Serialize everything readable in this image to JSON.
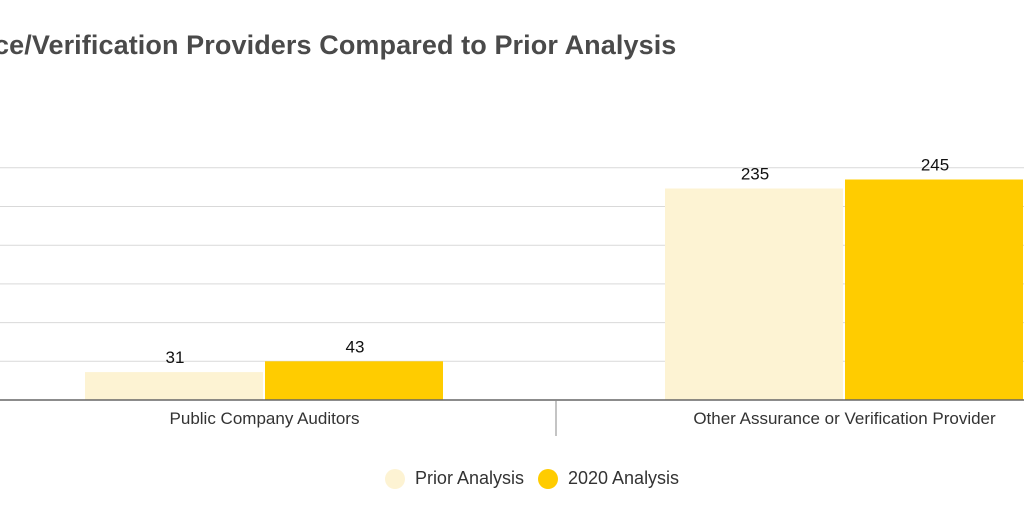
{
  "chart_data": {
    "type": "bar",
    "title": "ce/Verification Providers Compared to Prior Analysis",
    "categories": [
      "Public Company Auditors",
      "Other Assurance or Verification Provider"
    ],
    "series": [
      {
        "name": "Prior Analysis",
        "values": [
          31,
          235
        ],
        "color": "#fdf3d3"
      },
      {
        "name": "2020 Analysis",
        "values": [
          43,
          245
        ],
        "color": "#ffcc00"
      }
    ],
    "ylim": [
      0,
      300
    ],
    "grid": true,
    "legend_position": "bottom"
  },
  "colors": {
    "grid": "#d9d9d9",
    "baseline": "#666666",
    "title": "#4a4a4a"
  }
}
